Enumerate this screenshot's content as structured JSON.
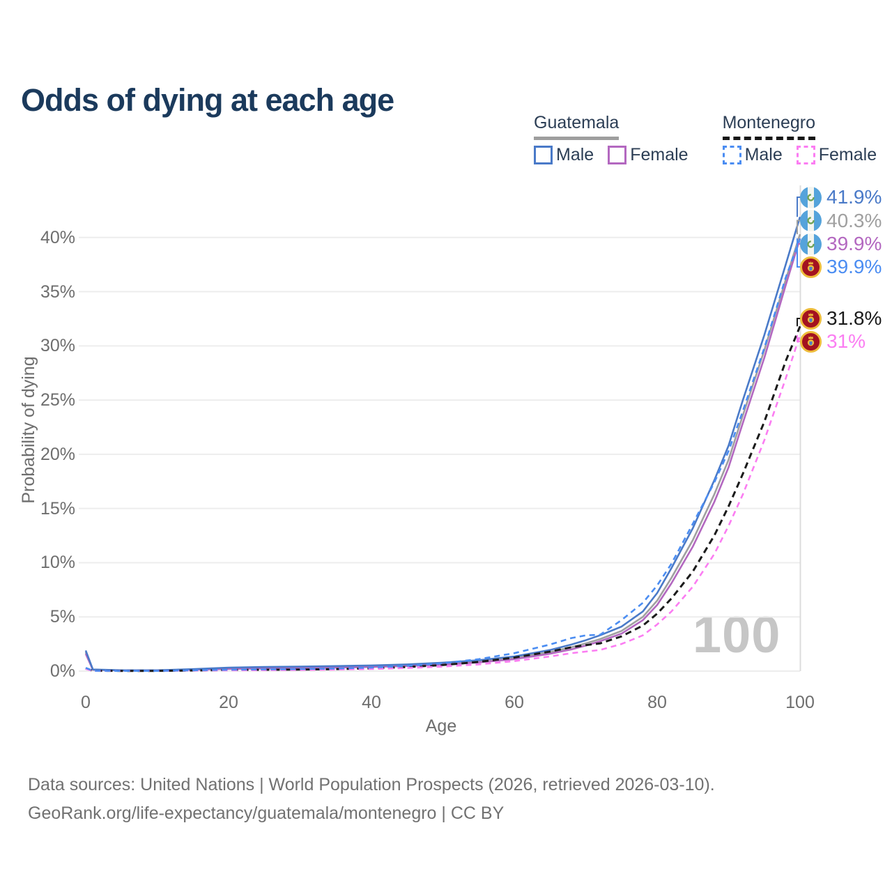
{
  "title": "Odds of dying at each age",
  "legend": {
    "guatemala": {
      "label": "Guatemala",
      "male_label": "Male",
      "female_label": "Female"
    },
    "montenegro": {
      "label": "Montenegro",
      "male_label": "Male",
      "female_label": "Female"
    }
  },
  "watermark": "100",
  "footer": {
    "line1": "Data sources: United Nations | World Population Prospects (2026, retrieved 2026-03-10).",
    "line2": "GeoRank.org/life-expectancy/guatemala/montenegro | CC BY"
  },
  "colors": {
    "title": "#1b3a5c",
    "legend_text": "#2c3e55",
    "axis_text": "#6e6e6e",
    "gridline": "#ededed",
    "age_cursor": "#dcdcdc",
    "guatemala_male": "#4a7ac8",
    "guatemala_both": "#a0a0a0",
    "guatemala_female": "#b368c0",
    "montenegro_male": "#4b8df2",
    "montenegro_both": "#1b1b1b",
    "montenegro_female": "#fb7df2"
  },
  "end_labels": [
    {
      "flag": "guatemala",
      "text": "41.9%",
      "color": "#4a7ac8"
    },
    {
      "flag": "guatemala",
      "text": "40.3%",
      "color": "#a0a0a0"
    },
    {
      "flag": "guatemala",
      "text": "39.9%",
      "color": "#b368c0"
    },
    {
      "flag": "montenegro",
      "text": "39.9%",
      "color": "#4b8df2"
    },
    {
      "flag": "montenegro",
      "text": "31.8%",
      "color": "#1b1b1b"
    },
    {
      "flag": "montenegro",
      "text": "31%",
      "color": "#fb7df2"
    }
  ],
  "chart_data": {
    "type": "line",
    "title": "Odds of dying at each age",
    "xlabel": "Age",
    "ylabel": "Probability of dying",
    "xlim": [
      0,
      100
    ],
    "ylim": [
      0,
      43
    ],
    "xticks": [
      0,
      20,
      40,
      60,
      80,
      100
    ],
    "yticks": [
      "0%",
      "5%",
      "10%",
      "15%",
      "20%",
      "25%",
      "30%",
      "35%",
      "40%"
    ],
    "grid": "horizontal",
    "legend_position": "top-right",
    "age_cursor": 100,
    "x": [
      0,
      1,
      5,
      10,
      15,
      20,
      25,
      30,
      35,
      40,
      45,
      50,
      55,
      60,
      65,
      68,
      70,
      72,
      75,
      78,
      80,
      82,
      85,
      88,
      90,
      92,
      95,
      98,
      100
    ],
    "series": [
      {
        "name": "Guatemala Male",
        "country": "Guatemala",
        "sex": "Male",
        "color": "#4a7ac8",
        "dashed": false,
        "width": 2.6,
        "end_label": "41.9%",
        "values": [
          1.9,
          0.15,
          0.08,
          0.08,
          0.18,
          0.32,
          0.38,
          0.42,
          0.46,
          0.52,
          0.62,
          0.78,
          1.0,
          1.35,
          1.95,
          2.45,
          2.85,
          3.3,
          4.1,
          5.5,
          7.2,
          9.5,
          13.2,
          17.6,
          20.8,
          25.0,
          31.0,
          37.5,
          41.9
        ]
      },
      {
        "name": "Guatemala Both sexes",
        "country": "Guatemala",
        "sex": "Both",
        "color": "#a0a0a0",
        "dashed": false,
        "width": 2.6,
        "end_label": "40.3%",
        "values": [
          1.75,
          0.13,
          0.07,
          0.07,
          0.15,
          0.26,
          0.31,
          0.35,
          0.39,
          0.45,
          0.54,
          0.69,
          0.9,
          1.22,
          1.75,
          2.2,
          2.55,
          2.95,
          3.7,
          5.0,
          6.5,
          8.6,
          12.1,
          16.3,
          19.5,
          23.6,
          29.6,
          36.1,
          40.3
        ]
      },
      {
        "name": "Guatemala Female",
        "country": "Guatemala",
        "sex": "Female",
        "color": "#b368c0",
        "dashed": false,
        "width": 2.6,
        "end_label": "39.9%",
        "values": [
          1.6,
          0.12,
          0.06,
          0.06,
          0.12,
          0.2,
          0.24,
          0.28,
          0.32,
          0.38,
          0.47,
          0.6,
          0.8,
          1.1,
          1.6,
          2.0,
          2.35,
          2.75,
          3.45,
          4.7,
          6.1,
          8.1,
          11.5,
          15.6,
          18.8,
          22.9,
          28.9,
          35.6,
          39.9
        ]
      },
      {
        "name": "Montenegro Male",
        "country": "Montenegro",
        "sex": "Male",
        "color": "#4b8df2",
        "dashed": true,
        "width": 2.6,
        "end_label": "39.9%",
        "values": [
          0.3,
          0.03,
          0.02,
          0.02,
          0.08,
          0.13,
          0.16,
          0.19,
          0.24,
          0.32,
          0.48,
          0.72,
          1.1,
          1.65,
          2.45,
          3.05,
          3.3,
          3.35,
          4.7,
          6.3,
          7.9,
          9.9,
          13.6,
          17.4,
          20.3,
          24.0,
          29.8,
          36.3,
          39.9
        ]
      },
      {
        "name": "Montenegro Both sexes",
        "country": "Montenegro",
        "sex": "Both",
        "color": "#1b1b1b",
        "dashed": true,
        "width": 3,
        "end_label": "31.8%",
        "values": [
          0.25,
          0.03,
          0.02,
          0.02,
          0.06,
          0.1,
          0.12,
          0.14,
          0.18,
          0.25,
          0.37,
          0.56,
          0.85,
          1.25,
          1.8,
          2.2,
          2.4,
          2.55,
          3.2,
          4.2,
          5.3,
          6.7,
          9.2,
          12.5,
          15.2,
          18.2,
          23.0,
          28.6,
          31.8
        ]
      },
      {
        "name": "Montenegro Female",
        "country": "Montenegro",
        "sex": "Female",
        "color": "#fb7df2",
        "dashed": true,
        "width": 2.6,
        "end_label": "31%",
        "values": [
          0.2,
          0.02,
          0.02,
          0.02,
          0.05,
          0.07,
          0.09,
          0.11,
          0.14,
          0.19,
          0.28,
          0.42,
          0.62,
          0.92,
          1.35,
          1.65,
          1.8,
          1.95,
          2.5,
          3.3,
          4.3,
          5.5,
          7.8,
          10.8,
          13.4,
          16.3,
          21.3,
          27.0,
          31.0
        ]
      }
    ]
  }
}
